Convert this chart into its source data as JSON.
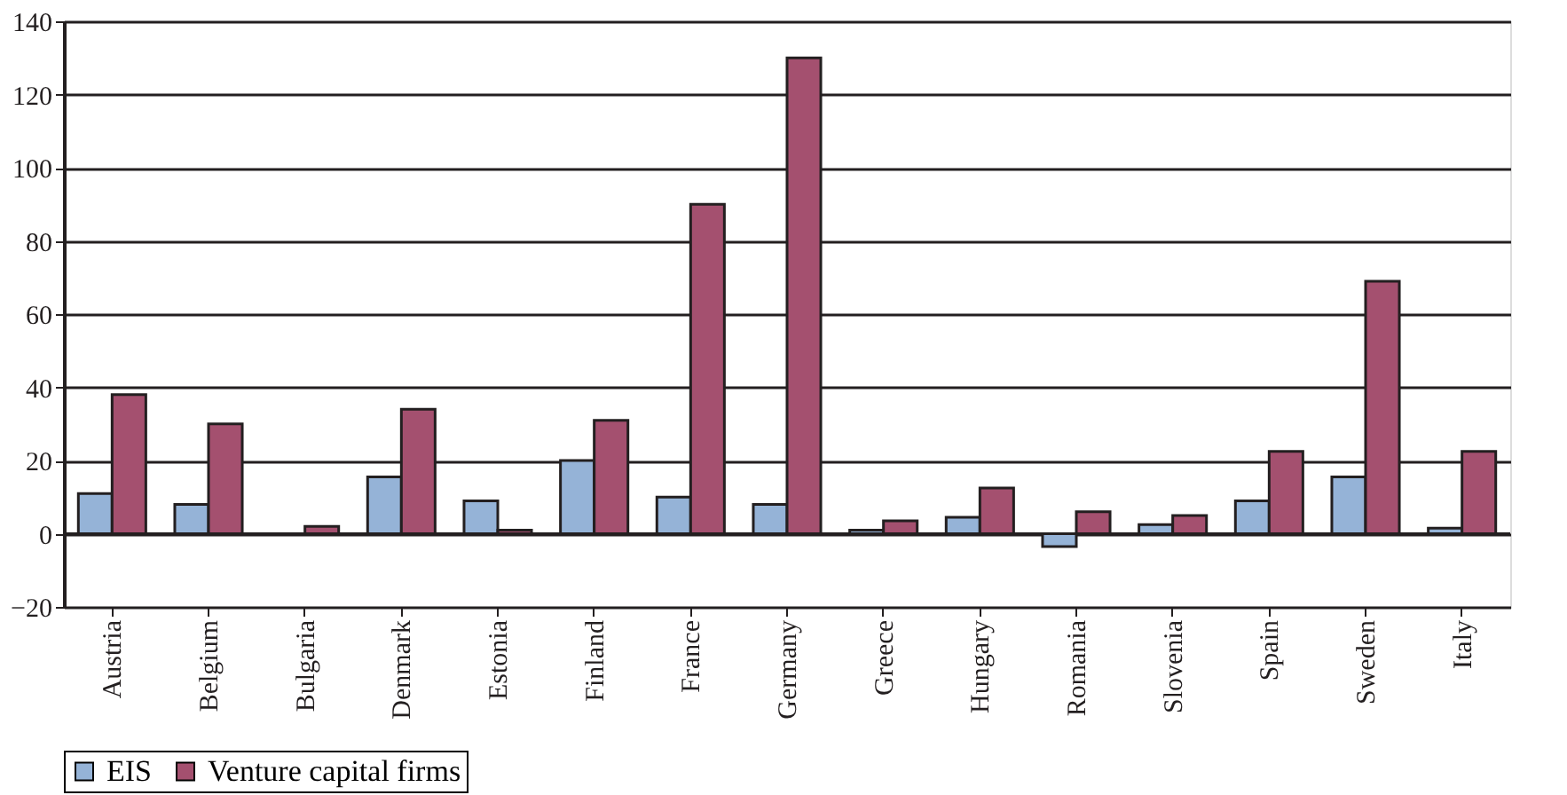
{
  "chart_data": {
    "type": "bar",
    "categories": [
      "Austria",
      "Belgium",
      "Bulgaria",
      "Denmark",
      "Estonia",
      "Finland",
      "France",
      "Germany",
      "Greece",
      "Hungary",
      "Romania",
      "Slovenia",
      "Spain",
      "Sweden",
      "Italy"
    ],
    "series": [
      {
        "name": "EIS",
        "color": "#95b3d7",
        "values": [
          11,
          8,
          null,
          15.5,
          9,
          20,
          10,
          8,
          1,
          4.5,
          -3.5,
          2.5,
          9,
          15.5,
          1.5
        ]
      },
      {
        "name": "Venture capital firms",
        "color": "#a4506f",
        "values": [
          38,
          30,
          2,
          34,
          1,
          31,
          90,
          130,
          3.5,
          12.5,
          6,
          5,
          22.5,
          69,
          22.5
        ]
      }
    ],
    "ylim": [
      -20,
      140
    ],
    "yticks": [
      -20,
      0,
      20,
      40,
      60,
      80,
      100,
      120,
      140
    ],
    "grid": "y",
    "legend": "bottom"
  }
}
